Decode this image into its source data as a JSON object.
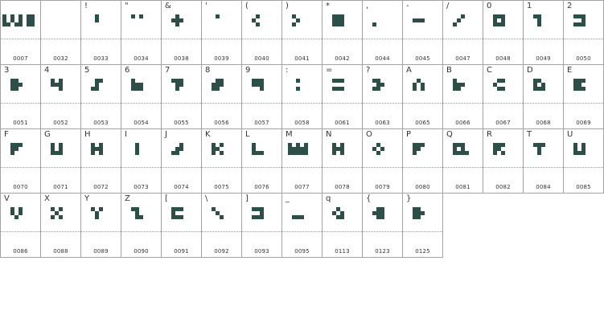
{
  "glyph_color": "#2c4f4a",
  "cells": [
    {
      "char": "",
      "code": "0007",
      "glyph": "w"
    },
    {
      "char": "",
      "code": "0032",
      "glyph": "space"
    },
    {
      "char": "!",
      "code": "0033",
      "glyph": "exclam"
    },
    {
      "char": "\"",
      "code": "0034",
      "glyph": "quote"
    },
    {
      "char": "&",
      "code": "0038",
      "glyph": "amp"
    },
    {
      "char": "'",
      "code": "0039",
      "glyph": "apos"
    },
    {
      "char": "(",
      "code": "0040",
      "glyph": "lparen"
    },
    {
      "char": ")",
      "code": "0041",
      "glyph": "rparen"
    },
    {
      "char": "*",
      "code": "0042",
      "glyph": "star"
    },
    {
      "char": ",",
      "code": "0044",
      "glyph": "comma"
    },
    {
      "char": "-",
      "code": "0045",
      "glyph": "hyphen"
    },
    {
      "char": "/",
      "code": "0047",
      "glyph": "slash"
    },
    {
      "char": "0",
      "code": "0048",
      "glyph": "zero"
    },
    {
      "char": "1",
      "code": "0049",
      "glyph": "one"
    },
    {
      "char": "2",
      "code": "0050",
      "glyph": "two"
    },
    {
      "char": "3",
      "code": "0051",
      "glyph": "three"
    },
    {
      "char": "4",
      "code": "0052",
      "glyph": "four"
    },
    {
      "char": "5",
      "code": "0053",
      "glyph": "five"
    },
    {
      "char": "6",
      "code": "0054",
      "glyph": "six"
    },
    {
      "char": "7",
      "code": "0055",
      "glyph": "seven"
    },
    {
      "char": "8",
      "code": "0056",
      "glyph": "eight"
    },
    {
      "char": "9",
      "code": "0057",
      "glyph": "nine"
    },
    {
      "char": ":",
      "code": "0058",
      "glyph": "colon"
    },
    {
      "char": "=",
      "code": "0061",
      "glyph": "equal"
    },
    {
      "char": "?",
      "code": "0063",
      "glyph": "question"
    },
    {
      "char": "A",
      "code": "0065",
      "glyph": "A"
    },
    {
      "char": "B",
      "code": "0066",
      "glyph": "B"
    },
    {
      "char": "C",
      "code": "0067",
      "glyph": "C"
    },
    {
      "char": "D",
      "code": "0068",
      "glyph": "D"
    },
    {
      "char": "E",
      "code": "0069",
      "glyph": "E"
    },
    {
      "char": "F",
      "code": "0070",
      "glyph": "F"
    },
    {
      "char": "G",
      "code": "0071",
      "glyph": "G"
    },
    {
      "char": "H",
      "code": "0072",
      "glyph": "H"
    },
    {
      "char": "I",
      "code": "0073",
      "glyph": "I"
    },
    {
      "char": "J",
      "code": "0074",
      "glyph": "J"
    },
    {
      "char": "K",
      "code": "0075",
      "glyph": "K"
    },
    {
      "char": "L",
      "code": "0076",
      "glyph": "L"
    },
    {
      "char": "M",
      "code": "0077",
      "glyph": "M"
    },
    {
      "char": "N",
      "code": "0078",
      "glyph": "N"
    },
    {
      "char": "O",
      "code": "0079",
      "glyph": "O"
    },
    {
      "char": "P",
      "code": "0080",
      "glyph": "P"
    },
    {
      "char": "Q",
      "code": "0081",
      "glyph": "Q"
    },
    {
      "char": "R",
      "code": "0082",
      "glyph": "R"
    },
    {
      "char": "T",
      "code": "0084",
      "glyph": "T"
    },
    {
      "char": "U",
      "code": "0085",
      "glyph": "U"
    },
    {
      "char": "V",
      "code": "0086",
      "glyph": "V"
    },
    {
      "char": "X",
      "code": "0088",
      "glyph": "X"
    },
    {
      "char": "Y",
      "code": "0089",
      "glyph": "Y"
    },
    {
      "char": "Z",
      "code": "0090",
      "glyph": "Z"
    },
    {
      "char": "[",
      "code": "0091",
      "glyph": "lbracket"
    },
    {
      "char": "\\",
      "code": "0092",
      "glyph": "backslash"
    },
    {
      "char": "]",
      "code": "0093",
      "glyph": "rbracket"
    },
    {
      "char": "_",
      "code": "0095",
      "glyph": "underscore"
    },
    {
      "char": "q",
      "code": "0113",
      "glyph": "q"
    },
    {
      "char": "{",
      "code": "0123",
      "glyph": "lbrace"
    },
    {
      "char": "}",
      "code": "0125",
      "glyph": "rbrace"
    }
  ]
}
